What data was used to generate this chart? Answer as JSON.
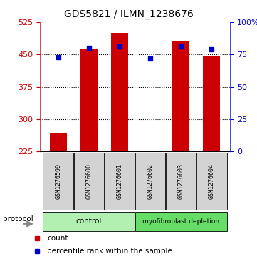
{
  "title": "GDS5821 / ILMN_1238676",
  "samples": [
    "GSM1276599",
    "GSM1276600",
    "GSM1276601",
    "GSM1276602",
    "GSM1276603",
    "GSM1276604"
  ],
  "counts": [
    268,
    463,
    500,
    228,
    480,
    445
  ],
  "percentile_ranks": [
    73,
    80,
    81,
    72,
    81,
    79
  ],
  "ylim_left": [
    225,
    525
  ],
  "ylim_right": [
    0,
    100
  ],
  "yticks_left": [
    225,
    300,
    375,
    450,
    525
  ],
  "yticks_right": [
    0,
    25,
    50,
    75,
    100
  ],
  "ytick_labels_right": [
    "0",
    "25",
    "50",
    "75",
    "100%"
  ],
  "groups": [
    {
      "label": "control",
      "start": 0,
      "end": 2,
      "color": "#b2f0b2"
    },
    {
      "label": "myofibroblast depletion",
      "start": 3,
      "end": 5,
      "color": "#66dd66"
    }
  ],
  "bar_color": "#CC0000",
  "dot_color": "#0000CC",
  "left_tick_color": "#CC0000",
  "right_tick_color": "#0000CC",
  "title_fontsize": 10,
  "tick_fontsize": 8,
  "legend_fontsize": 7.5,
  "protocol_label": "protocol",
  "background_color": "#ffffff",
  "sample_box_color": "#D3D3D3",
  "grid_color": "#000000",
  "grid_yticks": [
    300,
    375,
    450
  ]
}
